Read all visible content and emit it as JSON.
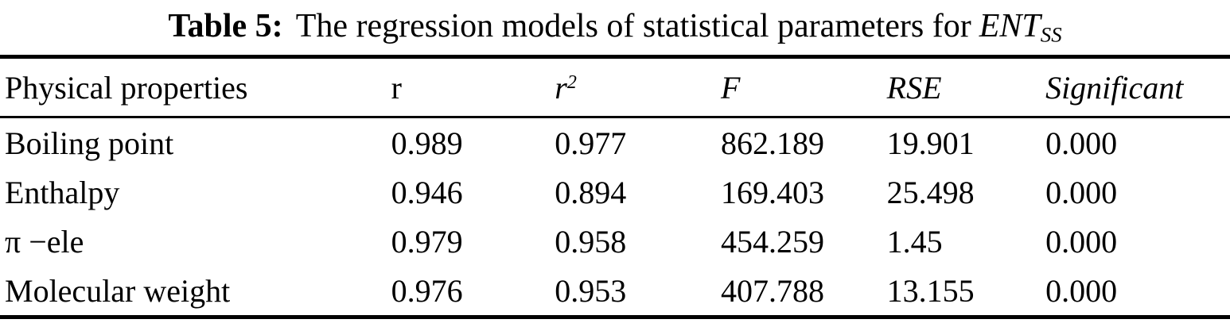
{
  "caption": {
    "label": "Table 5:",
    "text": "The regression models of statistical parameters for",
    "variable": "ENT",
    "variable_sub": "SS"
  },
  "table": {
    "header": {
      "col0": "Physical properties",
      "col1": "r",
      "col2_base": "r",
      "col2_sup": "2",
      "col3": "F",
      "col4": "RSE",
      "col5": "Significant"
    },
    "rows": [
      [
        "Boiling point",
        "0.989",
        "0.977",
        "862.189",
        "19.901",
        "0.000"
      ],
      [
        "Enthalpy",
        "0.946",
        "0.894",
        "169.403",
        "25.498",
        "0.000"
      ],
      [
        "π −ele",
        "0.979",
        "0.958",
        "454.259",
        "1.45",
        "0.000"
      ],
      [
        "Molecular weight",
        "0.976",
        "0.953",
        "407.788",
        "13.155",
        "0.000"
      ]
    ]
  },
  "colors": {
    "text": "#000000",
    "background": "#ffffff",
    "rule": "#000000"
  }
}
